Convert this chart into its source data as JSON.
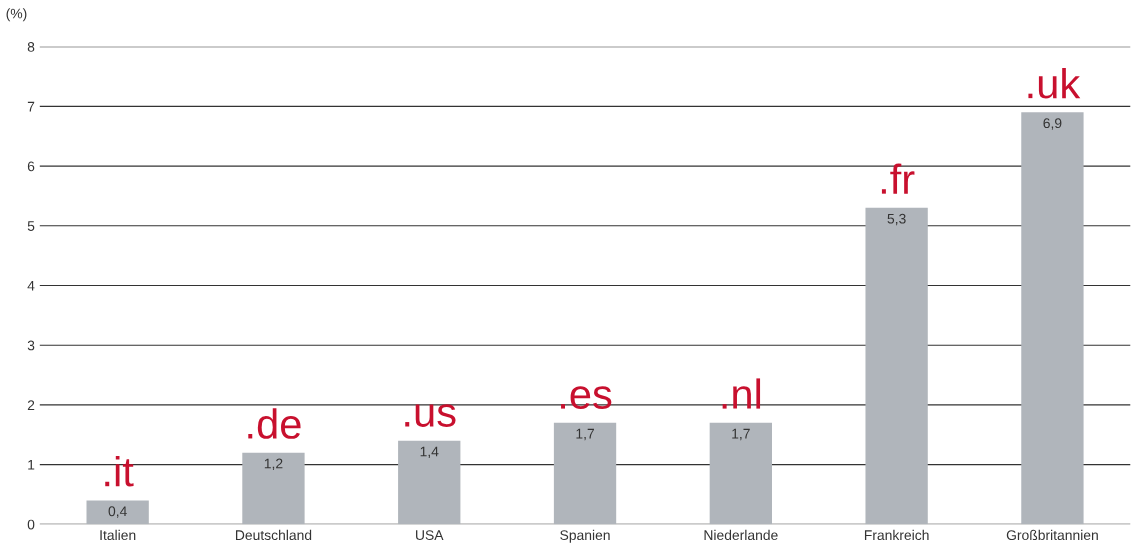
{
  "chart_data": {
    "type": "bar",
    "ylabel": "(%)",
    "categories": [
      "Italien",
      "Deutschland",
      "USA",
      "Spanien",
      "Niederlande",
      "Frankreich",
      "Großbritannien"
    ],
    "values": [
      0.4,
      1.2,
      1.4,
      1.7,
      1.7,
      5.3,
      6.9
    ],
    "value_labels": [
      "0,4",
      "1,2",
      "1,4",
      "1,7",
      "1,7",
      "5,3",
      "6,9"
    ],
    "color": "#b0b5bb",
    "ylim": [
      0,
      8
    ],
    "yticks": [
      0,
      1,
      2,
      3,
      4,
      5,
      6,
      7,
      8
    ],
    "grid": "y",
    "annotations": [
      ".it",
      ".de",
      ".us",
      ".es",
      ".nl",
      ".fr",
      ".uk"
    ]
  }
}
